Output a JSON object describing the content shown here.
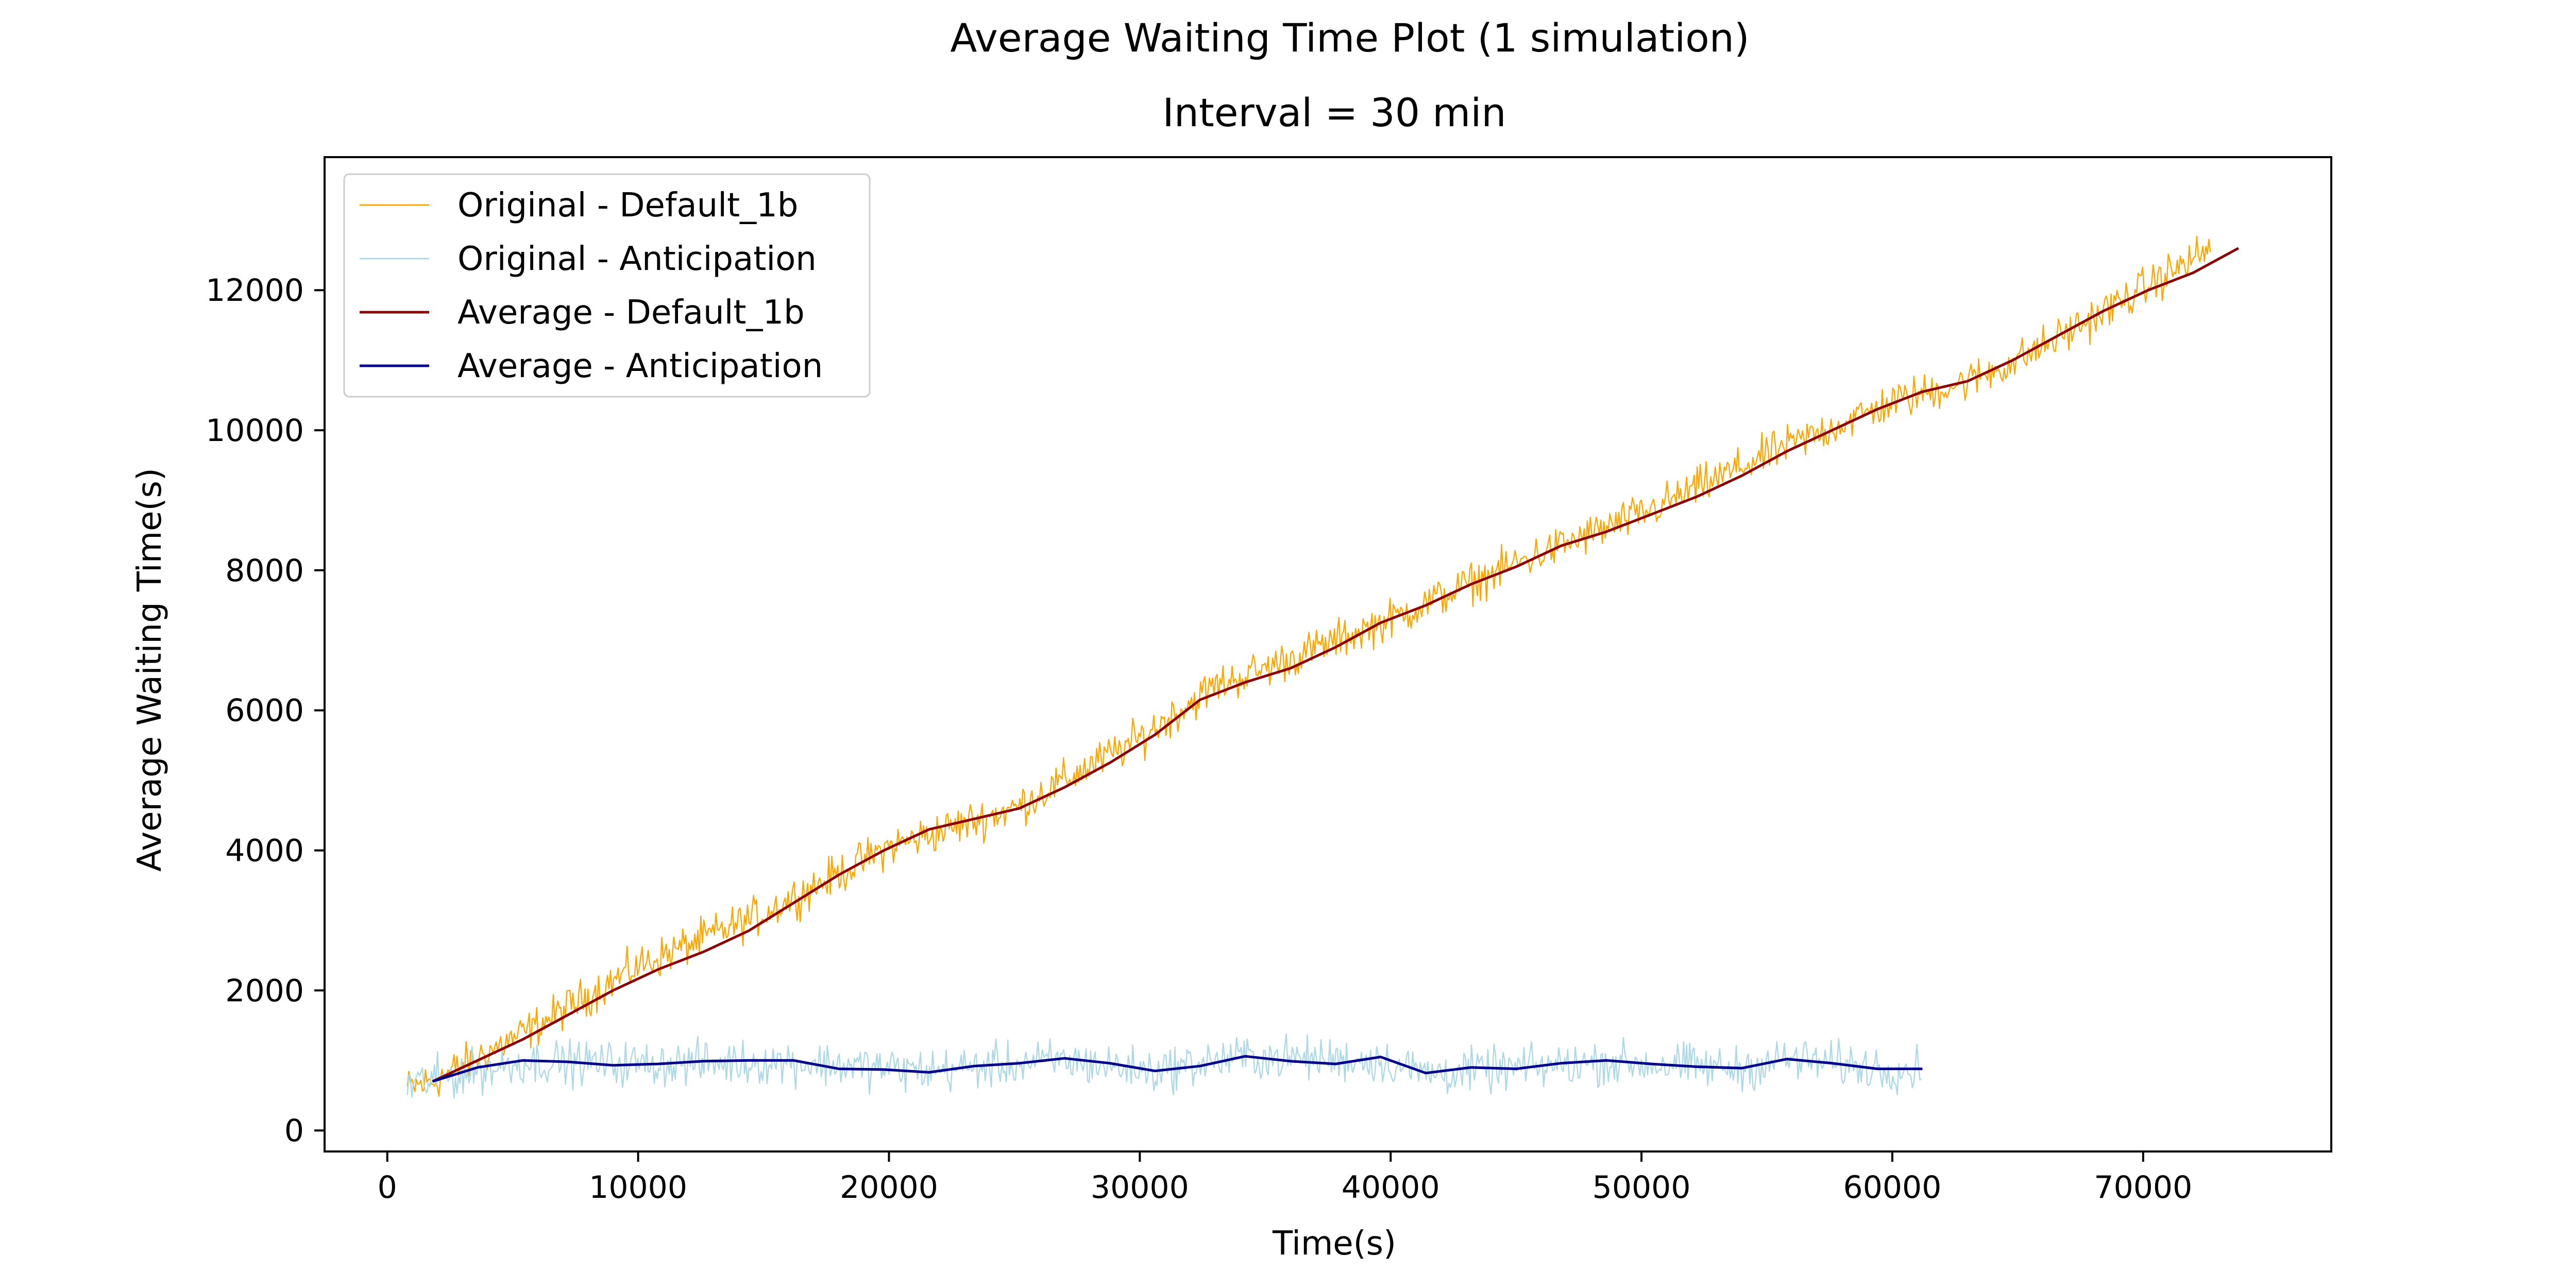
{
  "chart_data": {
    "type": "line",
    "title": "Average Waiting Time Plot (1 simulation)",
    "subtitle": "Interval = 30 min",
    "xlabel": "Time(s)",
    "ylabel": "Average Waiting Time(s)",
    "xlim": [
      -2500,
      77500
    ],
    "ylim": [
      -300,
      13900
    ],
    "xticks": [
      0,
      10000,
      20000,
      30000,
      40000,
      50000,
      60000,
      70000
    ],
    "yticks": [
      0,
      2000,
      4000,
      6000,
      8000,
      10000,
      12000
    ],
    "grid": false,
    "legend_position": "top-left",
    "series": [
      {
        "name": "Original - Default_1b",
        "color": "#ffa500",
        "kind": "noisy",
        "x_range": [
          800,
          72700
        ],
        "anchors": [
          [
            800,
            600
          ],
          [
            1800,
            700
          ],
          [
            5500,
            1400
          ],
          [
            10000,
            2350
          ],
          [
            15000,
            3100
          ],
          [
            20000,
            4050
          ],
          [
            25000,
            4600
          ],
          [
            30000,
            5600
          ],
          [
            33000,
            6350
          ],
          [
            35000,
            6600
          ],
          [
            40000,
            7300
          ],
          [
            45000,
            8100
          ],
          [
            50000,
            8800
          ],
          [
            55000,
            9650
          ],
          [
            60000,
            10400
          ],
          [
            63000,
            10700
          ],
          [
            65000,
            11000
          ],
          [
            68000,
            11600
          ],
          [
            72700,
            12600
          ]
        ],
        "noise_amplitude": 420
      },
      {
        "name": "Original - Anticipation",
        "color": "#add8e6",
        "kind": "noisy",
        "x_range": [
          800,
          61200
        ],
        "anchors": [
          [
            800,
            650
          ],
          [
            5500,
            980
          ],
          [
            10000,
            950
          ],
          [
            16000,
            980
          ],
          [
            21500,
            850
          ],
          [
            27000,
            1000
          ],
          [
            30500,
            850
          ],
          [
            34000,
            1050
          ],
          [
            39500,
            1000
          ],
          [
            41500,
            820
          ],
          [
            45000,
            880
          ],
          [
            48500,
            980
          ],
          [
            54000,
            880
          ],
          [
            55800,
            1020
          ],
          [
            59800,
            880
          ],
          [
            61200,
            880
          ]
        ],
        "noise_amplitude": 460
      },
      {
        "name": "Average - Default_1b",
        "color": "#8b0000",
        "kind": "line",
        "x": [
          1800,
          3600,
          5400,
          7200,
          9000,
          10800,
          12600,
          14400,
          16200,
          18000,
          19800,
          21600,
          23400,
          25200,
          27000,
          28800,
          30600,
          32400,
          34200,
          36000,
          37800,
          39600,
          41400,
          43200,
          45000,
          46800,
          48600,
          50400,
          52200,
          54000,
          55800,
          57600,
          59400,
          61200,
          63000,
          64800,
          66600,
          68400,
          70200,
          72000,
          73800
        ],
        "values": [
          700,
          1000,
          1300,
          1650,
          2000,
          2300,
          2550,
          2850,
          3250,
          3650,
          4000,
          4300,
          4450,
          4600,
          4900,
          5250,
          5650,
          6150,
          6400,
          6600,
          6900,
          7250,
          7500,
          7800,
          8050,
          8350,
          8550,
          8800,
          9050,
          9350,
          9700,
          10000,
          10300,
          10550,
          10700,
          11000,
          11350,
          11700,
          12000,
          12250,
          12600
        ]
      },
      {
        "name": "Average - Anticipation",
        "color": "#00008b",
        "kind": "line",
        "x": [
          1800,
          3600,
          5400,
          7200,
          9000,
          10800,
          12600,
          14400,
          16200,
          18000,
          19800,
          21600,
          23400,
          25200,
          27000,
          28800,
          30600,
          32400,
          34200,
          36000,
          37800,
          39600,
          41400,
          43200,
          45000,
          46800,
          48600,
          50400,
          52200,
          54000,
          55800,
          57600,
          59400,
          61200
        ],
        "values": [
          700,
          900,
          1000,
          980,
          930,
          950,
          990,
          1000,
          1000,
          880,
          870,
          830,
          920,
          960,
          1030,
          960,
          850,
          920,
          1060,
          990,
          950,
          1050,
          820,
          900,
          880,
          960,
          1000,
          950,
          910,
          890,
          1020,
          960,
          880,
          880
        ]
      }
    ]
  }
}
